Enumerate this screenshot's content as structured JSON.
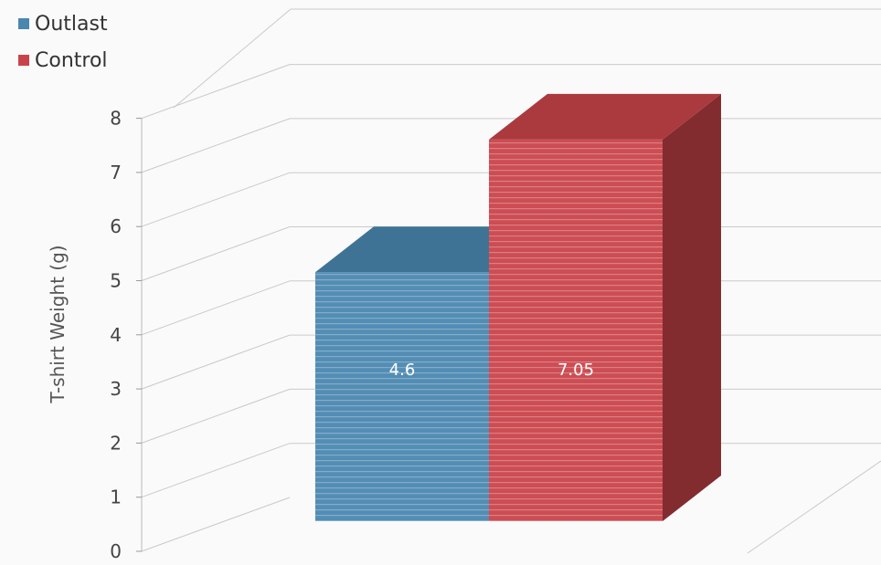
{
  "chart_data": {
    "type": "bar",
    "categories": [
      ""
    ],
    "series": [
      {
        "name": "Outlast",
        "values": [
          4.6
        ],
        "value_label": "4.6",
        "color": "#4a87b0"
      },
      {
        "name": "Control",
        "values": [
          7.05
        ],
        "value_label": "7.05",
        "color": "#c9444a"
      }
    ],
    "ylabel": "T-shirt Weight (g)",
    "xlabel": "",
    "title": "",
    "ylim": [
      0,
      8
    ],
    "yticks": [
      "0",
      "1",
      "2",
      "3",
      "4",
      "5",
      "6",
      "7",
      "8"
    ],
    "grid": true,
    "legend_position": "top-left",
    "style": "3d"
  }
}
